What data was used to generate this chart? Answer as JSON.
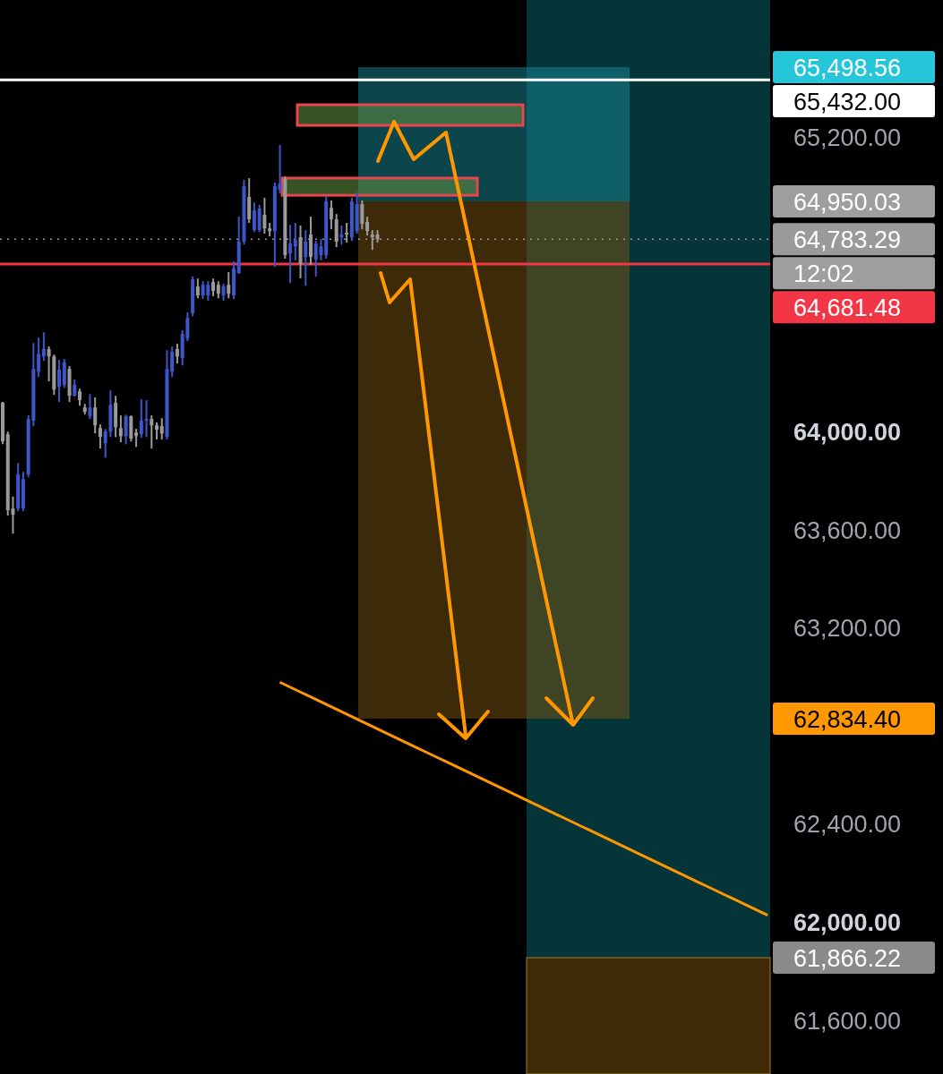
{
  "chart_data": {
    "type": "candlestick",
    "ylim": [
      61380,
      65758
    ],
    "tick_labels": "y",
    "categories": [
      null,
      null,
      null,
      null,
      null,
      null,
      null,
      null,
      null,
      null,
      null,
      null,
      null,
      null,
      null,
      null,
      null,
      null,
      null,
      null,
      null,
      null,
      null,
      null,
      null,
      null,
      null,
      null,
      null,
      null,
      null,
      null,
      null,
      null,
      null,
      null,
      null,
      null,
      null,
      null,
      null,
      null,
      null,
      null,
      null,
      null,
      null,
      null,
      null,
      null,
      null,
      null,
      null,
      null,
      null,
      null,
      null,
      null,
      null,
      null,
      null,
      null,
      null,
      null,
      null,
      null,
      null,
      null,
      null,
      null,
      null,
      null,
      null,
      null,
      null,
      null,
      null,
      null,
      null,
      null,
      null,
      null,
      null,
      null,
      null,
      null,
      null,
      null,
      null,
      null,
      null,
      null,
      null,
      null,
      null,
      null,
      null,
      null,
      null,
      null,
      null,
      null,
      null,
      null,
      null,
      null,
      null,
      null,
      null,
      null,
      null,
      null,
      null,
      null,
      null,
      null,
      null,
      null,
      null,
      null,
      null,
      null,
      null,
      null,
      null,
      null,
      null,
      null,
      null,
      null,
      null,
      null,
      null,
      null,
      null,
      null,
      null,
      null,
      null,
      null,
      null,
      null,
      null,
      null,
      null,
      null,
      null,
      null,
      null,
      null
    ],
    "yticks": [
      {
        "value": 61600,
        "label": "61,600.00"
      },
      {
        "value": 62000,
        "label": "62,000.00"
      },
      {
        "value": 62400,
        "label": "62,400.00"
      },
      {
        "value": 63200,
        "label": "63,200.00"
      },
      {
        "value": 63600,
        "label": "63,600.00"
      },
      {
        "value": 64000,
        "label": "64,000.00"
      },
      {
        "value": 65200,
        "label": "65,200.00"
      }
    ],
    "bands": [
      {
        "axis": "y",
        "from": 65247,
        "to": 65331,
        "color": "#5a8a40"
      },
      {
        "axis": "y",
        "from": 64962,
        "to": 65032,
        "color": "#5a8a40"
      }
    ],
    "ref_lines": [
      {
        "axis": "y",
        "value": 65432,
        "label": "65,432.00",
        "color": "#ffffff",
        "line_style": "solid"
      },
      {
        "axis": "y",
        "value": 64783.29,
        "label": "64,783.29",
        "color": "#9a9a9a",
        "line_style": "dotted"
      },
      {
        "axis": "y",
        "value": 64681.48,
        "label": "64,681.48",
        "color": "#f23645",
        "line_style": "solid"
      }
    ],
    "annotations": [
      "65,498.56",
      "64,950.03",
      "12:02",
      "62,834.40",
      "61,866.22"
    ],
    "ohlc": [
      [
        64116,
        64116,
        63951,
        63959
      ],
      [
        63988,
        63995,
        63660,
        63678
      ],
      [
        63685,
        63730,
        63586,
        63660
      ],
      [
        63685,
        63867,
        63678,
        63824
      ],
      [
        63685,
        63831,
        63678,
        63805
      ],
      [
        63824,
        64061,
        63816,
        64050
      ],
      [
        64043,
        64356,
        64024,
        64254
      ],
      [
        64243,
        64378,
        64225,
        64316
      ],
      [
        64305,
        64400,
        64291,
        64335
      ],
      [
        64335,
        64342,
        64207,
        64305
      ],
      [
        64305,
        64309,
        64152,
        64170
      ],
      [
        64181,
        64287,
        64123,
        64251
      ],
      [
        64189,
        64291,
        64181,
        64280
      ],
      [
        64254,
        64262,
        64123,
        64145
      ],
      [
        64145,
        64207,
        64145,
        64189
      ],
      [
        64163,
        64170,
        64108,
        64127
      ],
      [
        64097,
        64108,
        64072,
        64079
      ],
      [
        64061,
        64148,
        64053,
        64097
      ],
      [
        64097,
        64134,
        63995,
        64024
      ],
      [
        64013,
        64024,
        63933,
        63977
      ],
      [
        63951,
        64006,
        63896,
        63999
      ],
      [
        63999,
        64163,
        63980,
        64108
      ],
      [
        64116,
        64141,
        63980,
        64017
      ],
      [
        64013,
        64061,
        63959,
        63980
      ],
      [
        63980,
        64064,
        63951,
        64061
      ],
      [
        64061,
        64061,
        63962,
        63970
      ],
      [
        63995,
        64006,
        63940,
        63980
      ],
      [
        63988,
        64127,
        63977,
        64043
      ],
      [
        64043,
        64123,
        63980,
        64050
      ],
      [
        64050,
        64061,
        63933,
        64024
      ],
      [
        64024,
        64032,
        63970,
        64006
      ],
      [
        64021,
        64050,
        63970,
        63991
      ],
      [
        63977,
        64327,
        63970,
        64254
      ],
      [
        64243,
        64342,
        64225,
        64324
      ],
      [
        64335,
        64353,
        64280,
        64305
      ],
      [
        64298,
        64408,
        64272,
        64397
      ],
      [
        64378,
        64481,
        64371,
        64462
      ],
      [
        64481,
        64627,
        64473,
        64619
      ],
      [
        64590,
        64619,
        64546,
        64554
      ],
      [
        64554,
        64608,
        64543,
        64597
      ],
      [
        64554,
        64608,
        64535,
        64597
      ],
      [
        64608,
        64619,
        64554,
        64572
      ],
      [
        64597,
        64608,
        64546,
        64561
      ],
      [
        64554,
        64597,
        64535,
        64590
      ],
      [
        64597,
        64645,
        64546,
        64561
      ],
      [
        64554,
        64689,
        64543,
        64663
      ],
      [
        64645,
        64871,
        64645,
        64773
      ],
      [
        64773,
        65021,
        64765,
        64999
      ],
      [
        64955,
        65028,
        64853,
        64864
      ],
      [
        64820,
        64929,
        64816,
        64900
      ],
      [
        64820,
        64919,
        64816,
        64908
      ],
      [
        64882,
        64948,
        64809,
        64827
      ],
      [
        64827,
        64846,
        64798,
        64816
      ],
      [
        64816,
        65010,
        64674,
        64999
      ],
      [
        64984,
        65163,
        64973,
        65010
      ],
      [
        65028,
        65035,
        64707,
        64718
      ],
      [
        64725,
        64838,
        64608,
        64765
      ],
      [
        64754,
        64846,
        64700,
        64780
      ],
      [
        64791,
        64835,
        64627,
        64681
      ],
      [
        64710,
        64816,
        64597,
        64773
      ],
      [
        64802,
        64871,
        64681,
        64710
      ],
      [
        64700,
        64773,
        64634,
        64765
      ],
      [
        64718,
        64780,
        64700,
        64754
      ],
      [
        64718,
        64955,
        64707,
        64937
      ],
      [
        64911,
        64937,
        64827,
        64864
      ],
      [
        64864,
        64882,
        64754,
        64773
      ],
      [
        64791,
        64835,
        64765,
        64802
      ],
      [
        64809,
        64846,
        64773,
        64802
      ],
      [
        64791,
        64948,
        64780,
        64937
      ],
      [
        64816,
        64970,
        64809,
        64926
      ],
      [
        64926,
        64937,
        64827,
        64846
      ],
      [
        64853,
        64871,
        64802,
        64816
      ],
      [
        64802,
        64816,
        64743,
        64791
      ],
      [
        64802,
        64816,
        64773,
        64783
      ],
      null,
      null,
      null,
      null,
      null,
      null,
      null,
      null,
      null,
      null,
      null,
      null,
      null,
      null,
      null,
      null,
      null,
      null,
      null,
      null,
      null,
      null,
      null,
      null,
      null,
      null,
      null,
      null,
      null,
      null,
      null,
      null,
      null,
      null,
      null,
      null,
      null,
      null,
      null,
      null,
      null,
      null,
      null,
      null,
      null,
      null,
      null,
      null,
      null,
      null,
      null,
      null,
      null,
      null,
      null,
      null,
      null,
      null,
      null,
      null,
      null,
      null,
      null,
      null,
      null,
      null,
      null,
      null,
      null,
      null,
      null,
      null,
      null,
      null,
      null,
      null
    ],
    "colors": [
      "#9a9a9a",
      "#9a9a9a",
      "#9a9a9a",
      "#3d56c9",
      "#3d56c9",
      "#3d56c9",
      "#3d56c9",
      "#3d56c9",
      "#3d56c9",
      "#9a9a9a",
      "#9a9a9a",
      "#3d56c9",
      "#3d56c9",
      "#9a9a9a",
      "#3d56c9",
      "#9a9a9a",
      "#9a9a9a",
      "#3d56c9",
      "#9a9a9a",
      "#9a9a9a",
      "#3d56c9",
      "#3d56c9",
      "#9a9a9a",
      "#9a9a9a",
      "#3d56c9",
      "#9a9a9a",
      "#9a9a9a",
      "#3d56c9",
      "#3d56c9",
      "#9a9a9a",
      "#9a9a9a",
      "#9a9a9a",
      "#3d56c9",
      "#3d56c9",
      "#9a9a9a",
      "#3d56c9",
      "#3d56c9",
      "#3d56c9",
      "#9a9a9a",
      "#3d56c9",
      "#3d56c9",
      "#9a9a9a",
      "#9a9a9a",
      "#3d56c9",
      "#9a9a9a",
      "#3d56c9",
      "#3d56c9",
      "#3d56c9",
      "#9a9a9a",
      "#3d56c9",
      "#3d56c9",
      "#9a9a9a",
      "#9a9a9a",
      "#3d56c9",
      "#3d56c9",
      "#9a9a9a",
      "#3d56c9",
      "#3d56c9",
      "#9a9a9a",
      "#3d56c9",
      "#9a9a9a",
      "#3d56c9",
      "#3d56c9",
      "#3d56c9",
      "#9a9a9a",
      "#9a9a9a",
      "#3d56c9",
      "#9a9a9a",
      "#3d56c9",
      "#3d56c9",
      "#9a9a9a",
      "#9a9a9a",
      "#9a9a9a",
      "#9a9a9a",
      null,
      null,
      null,
      null,
      null,
      null,
      null,
      null,
      null,
      null,
      null,
      null,
      null,
      null,
      null,
      null,
      null,
      null,
      null,
      null,
      null,
      null,
      null,
      null,
      null,
      null,
      null,
      null,
      null,
      null,
      null,
      null,
      null,
      null,
      null,
      null,
      null,
      null,
      null,
      null,
      null,
      null,
      null,
      null,
      null,
      null,
      null,
      null,
      null,
      null,
      null,
      null,
      null,
      null,
      null,
      null,
      null,
      null,
      null,
      null,
      null,
      null,
      null,
      null,
      null,
      null,
      null,
      null,
      null,
      null,
      null,
      null,
      null,
      null,
      null,
      null
    ],
    "series": [
      {
        "type": "line",
        "color": "#ff9800",
        "values": [
          null,
          null,
          null,
          null,
          null,
          null,
          null,
          null,
          null,
          null,
          null,
          null,
          null,
          null,
          null,
          null,
          null,
          null,
          null,
          null,
          null,
          null,
          null,
          null,
          null,
          null,
          null,
          null,
          null,
          null,
          null,
          null,
          null,
          null,
          null,
          null,
          null,
          null,
          null,
          null,
          null,
          null,
          null,
          null,
          null,
          null,
          null,
          null,
          null,
          null,
          null,
          null,
          null,
          null,
          62977,
          62967,
          62957,
          62947,
          62937,
          62927,
          62917,
          62907,
          62897,
          62887,
          62877,
          62867,
          62857,
          62847,
          62837,
          62827,
          62817,
          62807,
          62797,
          62787,
          62777,
          62767,
          62757,
          62747,
          62737,
          62727,
          62717,
          62707,
          62697,
          62687,
          62677,
          62667,
          62657,
          62647,
          62637,
          62627,
          62617,
          62607,
          62597,
          62587,
          62577,
          62567,
          62557,
          62547,
          62537,
          62527,
          62517,
          62507,
          62497,
          62487,
          62477,
          62467,
          62457,
          62447,
          62437,
          62427,
          62417,
          62407,
          62397,
          62387,
          62377,
          62367,
          62357,
          62347,
          62337,
          62327,
          62317,
          62307,
          62297,
          62287,
          62277,
          62267,
          62257,
          62247,
          62237,
          62227,
          62217,
          62207,
          62197,
          62187,
          62177,
          62167,
          62157,
          62147,
          62137,
          62127,
          62117,
          62107,
          62097,
          62087,
          62077,
          62067,
          62057,
          62047,
          62037,
          62027
        ]
      }
    ]
  }
}
